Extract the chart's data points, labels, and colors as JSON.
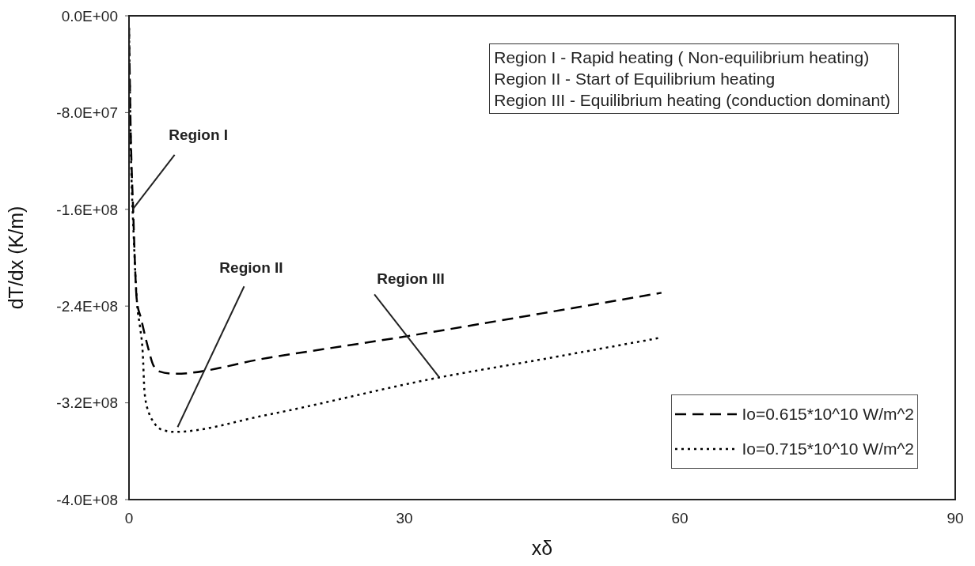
{
  "chart_data": {
    "type": "line",
    "xlabel": "xδ",
    "ylabel": "dT/dx (K/m)",
    "xlim": [
      0,
      90
    ],
    "xticks": [
      0,
      30,
      60,
      90
    ],
    "ylim": [
      -400000000,
      0
    ],
    "yticks": [
      {
        "value": 0,
        "label": "0.0E+00"
      },
      {
        "value": -80000000,
        "label": "-8.0E+07"
      },
      {
        "value": -160000000,
        "label": "-1.6E+08"
      },
      {
        "value": -240000000,
        "label": "-2.4E+08"
      },
      {
        "value": -320000000,
        "label": "-3.2E+08"
      },
      {
        "value": -400000000,
        "label": "-4.0E+08"
      }
    ],
    "grid": false,
    "legend": "bottom right",
    "series": [
      {
        "name": "Io=0.615*10^10 W/m^2",
        "color": "#000000",
        "line_style": "dashed",
        "x": [
          0,
          0.2,
          0.45,
          0.85,
          1.3,
          2.1,
          2.6,
          3.3,
          4.9,
          15,
          30.2,
          45,
          58
        ],
        "values": [
          -10000000,
          -100000000,
          -160000000,
          -235000000,
          -250000000,
          -275000000,
          -288000000,
          -294000000,
          -296000000,
          -283000000,
          -265000000,
          -246000000,
          -229000000
        ]
      },
      {
        "name": "Io=0.715*10^10 W/m^2",
        "color": "#000000",
        "line_style": "dotted",
        "x": [
          0,
          0.2,
          0.5,
          0.9,
          1.2,
          1.5,
          1.7,
          2.2,
          2.6,
          3.5,
          4.9,
          15,
          33.8,
          45,
          58
        ],
        "values": [
          -10000000,
          -110000000,
          -180000000,
          -240000000,
          -257000000,
          -279000000,
          -312000000,
          -329000000,
          -335000000,
          -342000000,
          -344000000,
          -330000000,
          -299000000,
          -284000000,
          -266000000
        ]
      }
    ],
    "annotations": [
      {
        "text": "Region I",
        "x": 0.4,
        "y": -160000000
      },
      {
        "text": "Region II",
        "x": 5.3,
        "y": -340000000
      },
      {
        "text": "Region III",
        "x": 33.8,
        "y": -299000000
      },
      "Region I - Rapid heating ( Non-equilibrium heating)",
      "Region II - Start of Equilibrium heating",
      "Region III - Equilibrium heating (conduction dominant)"
    ]
  }
}
